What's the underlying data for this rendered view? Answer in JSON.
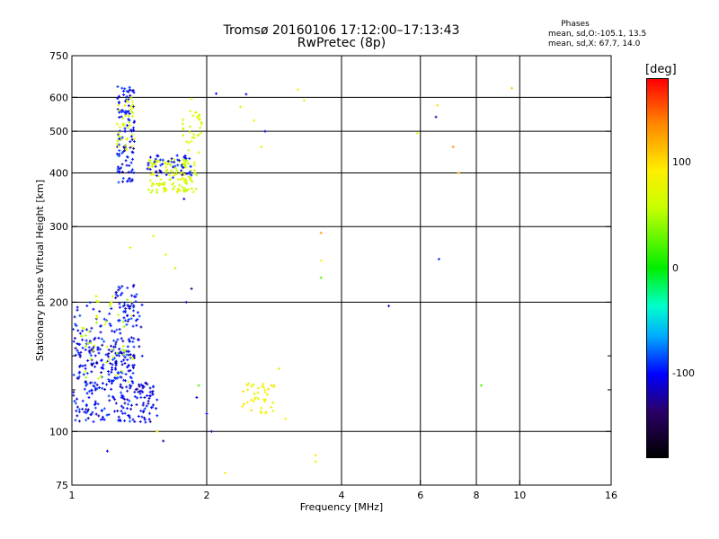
{
  "title": {
    "line1": "Tromsø 20160106 17:12:00–17:13:43",
    "line2": "RwPretec (8p)"
  },
  "phases_box": {
    "title": "Phases",
    "line_o": "mean, sd,O:-105.1, 13.5",
    "line_x": "mean, sd,X:  67.7, 14.0"
  },
  "colorbar": {
    "label": "[deg]",
    "ticks": [
      {
        "label": "100",
        "value": 100
      },
      {
        "label": "0",
        "value": 0
      },
      {
        "label": "-100",
        "value": -100
      }
    ],
    "range": [
      -180,
      180
    ]
  },
  "chart_data": {
    "type": "scatter",
    "xlabel": "Frequency [MHz]",
    "ylabel": "Stationary phase Virtual Height [km]",
    "x_scale": "log",
    "y_scale": "log",
    "xlim": [
      1,
      16
    ],
    "ylim": [
      75,
      750
    ],
    "x_ticks": [
      {
        "value": 1,
        "label": "1"
      },
      {
        "value": 2,
        "label": "2"
      },
      {
        "value": 4,
        "label": "4"
      },
      {
        "value": 6,
        "label": "6"
      },
      {
        "value": 8,
        "label": "8"
      },
      {
        "value": 10,
        "label": "10"
      },
      {
        "value": 16,
        "label": "16"
      }
    ],
    "y_ticks": [
      {
        "value": 75,
        "label": "75"
      },
      {
        "value": 100,
        "label": "100"
      },
      {
        "value": 200,
        "label": "200"
      },
      {
        "value": 300,
        "label": "300"
      },
      {
        "value": 400,
        "label": "400"
      },
      {
        "value": 500,
        "label": "500"
      },
      {
        "value": 600,
        "label": "600"
      },
      {
        "value": 750,
        "label": "750"
      }
    ],
    "grid_x": [
      2,
      4,
      6,
      8,
      10
    ],
    "grid_y": [
      100,
      200,
      300,
      400,
      500,
      600
    ],
    "minor_y": [
      150,
      125
    ],
    "grid": true,
    "clusters": [
      {
        "fmin": 1.0,
        "fmax": 1.38,
        "hmin": 105,
        "hmax": 165,
        "n": 260,
        "phase": -100
      },
      {
        "fmin": 1.0,
        "fmax": 1.45,
        "hmin": 140,
        "hmax": 200,
        "n": 90,
        "phase": -100
      },
      {
        "fmin": 1.05,
        "fmax": 1.38,
        "hmin": 130,
        "hmax": 210,
        "n": 50,
        "phase": 60
      },
      {
        "fmin": 1.25,
        "fmax": 1.4,
        "hmin": 180,
        "hmax": 220,
        "n": 45,
        "phase": -100
      },
      {
        "fmin": 1.38,
        "fmax": 1.55,
        "hmin": 105,
        "hmax": 130,
        "n": 60,
        "phase": -105
      },
      {
        "fmin": 1.26,
        "fmax": 1.38,
        "hmin": 380,
        "hmax": 640,
        "n": 110,
        "phase": -100
      },
      {
        "fmin": 1.26,
        "fmax": 1.38,
        "hmin": 450,
        "hmax": 600,
        "n": 40,
        "phase": 70
      },
      {
        "fmin": 1.48,
        "fmax": 1.9,
        "hmin": 360,
        "hmax": 430,
        "n": 130,
        "phase": 65
      },
      {
        "fmin": 1.45,
        "fmax": 1.85,
        "hmin": 390,
        "hmax": 440,
        "n": 50,
        "phase": -100
      },
      {
        "fmin": 1.75,
        "fmax": 1.95,
        "hmin": 430,
        "hmax": 560,
        "n": 30,
        "phase": 70
      },
      {
        "fmin": 2.4,
        "fmax": 2.85,
        "hmin": 110,
        "hmax": 130,
        "n": 40,
        "phase": 85
      }
    ],
    "points": [
      {
        "x": 2.1,
        "y": 612,
        "phase": -100
      },
      {
        "x": 2.38,
        "y": 570,
        "phase": 60
      },
      {
        "x": 2.45,
        "y": 610,
        "phase": -100
      },
      {
        "x": 2.55,
        "y": 530,
        "phase": 90
      },
      {
        "x": 2.7,
        "y": 500,
        "phase": -100
      },
      {
        "x": 2.65,
        "y": 460,
        "phase": 70
      },
      {
        "x": 3.2,
        "y": 625,
        "phase": 90
      },
      {
        "x": 3.3,
        "y": 590,
        "phase": 70
      },
      {
        "x": 6.5,
        "y": 540,
        "phase": -120
      },
      {
        "x": 6.55,
        "y": 575,
        "phase": 100
      },
      {
        "x": 7.1,
        "y": 460,
        "phase": 130
      },
      {
        "x": 7.3,
        "y": 400,
        "phase": 120
      },
      {
        "x": 9.6,
        "y": 630,
        "phase": 110
      },
      {
        "x": 5.9,
        "y": 495,
        "phase": 80
      },
      {
        "x": 3.6,
        "y": 290,
        "phase": 130
      },
      {
        "x": 3.6,
        "y": 250,
        "phase": 90
      },
      {
        "x": 3.6,
        "y": 228,
        "phase": 20
      },
      {
        "x": 6.6,
        "y": 252,
        "phase": -90
      },
      {
        "x": 5.1,
        "y": 196,
        "phase": -110
      },
      {
        "x": 8.2,
        "y": 128,
        "phase": 20
      },
      {
        "x": 2.9,
        "y": 140,
        "phase": 60
      },
      {
        "x": 3.0,
        "y": 107,
        "phase": 90
      },
      {
        "x": 3.5,
        "y": 88,
        "phase": 100
      },
      {
        "x": 3.5,
        "y": 85,
        "phase": 80
      },
      {
        "x": 2.2,
        "y": 80,
        "phase": 90
      },
      {
        "x": 2.05,
        "y": 100,
        "phase": -110
      },
      {
        "x": 2.0,
        "y": 110,
        "phase": -100
      },
      {
        "x": 1.9,
        "y": 120,
        "phase": -100
      },
      {
        "x": 1.92,
        "y": 128,
        "phase": 20
      },
      {
        "x": 1.85,
        "y": 215,
        "phase": -120
      },
      {
        "x": 1.8,
        "y": 200,
        "phase": -110
      },
      {
        "x": 1.6,
        "y": 95,
        "phase": -110
      },
      {
        "x": 1.55,
        "y": 100,
        "phase": 90
      },
      {
        "x": 1.52,
        "y": 285,
        "phase": 60
      },
      {
        "x": 1.62,
        "y": 258,
        "phase": 80
      },
      {
        "x": 1.7,
        "y": 240,
        "phase": 50
      },
      {
        "x": 1.78,
        "y": 348,
        "phase": -110
      },
      {
        "x": 1.95,
        "y": 520,
        "phase": 60
      },
      {
        "x": 1.85,
        "y": 595,
        "phase": 80
      },
      {
        "x": 1.2,
        "y": 90,
        "phase": -100
      },
      {
        "x": 1.35,
        "y": 268,
        "phase": 70
      }
    ]
  }
}
